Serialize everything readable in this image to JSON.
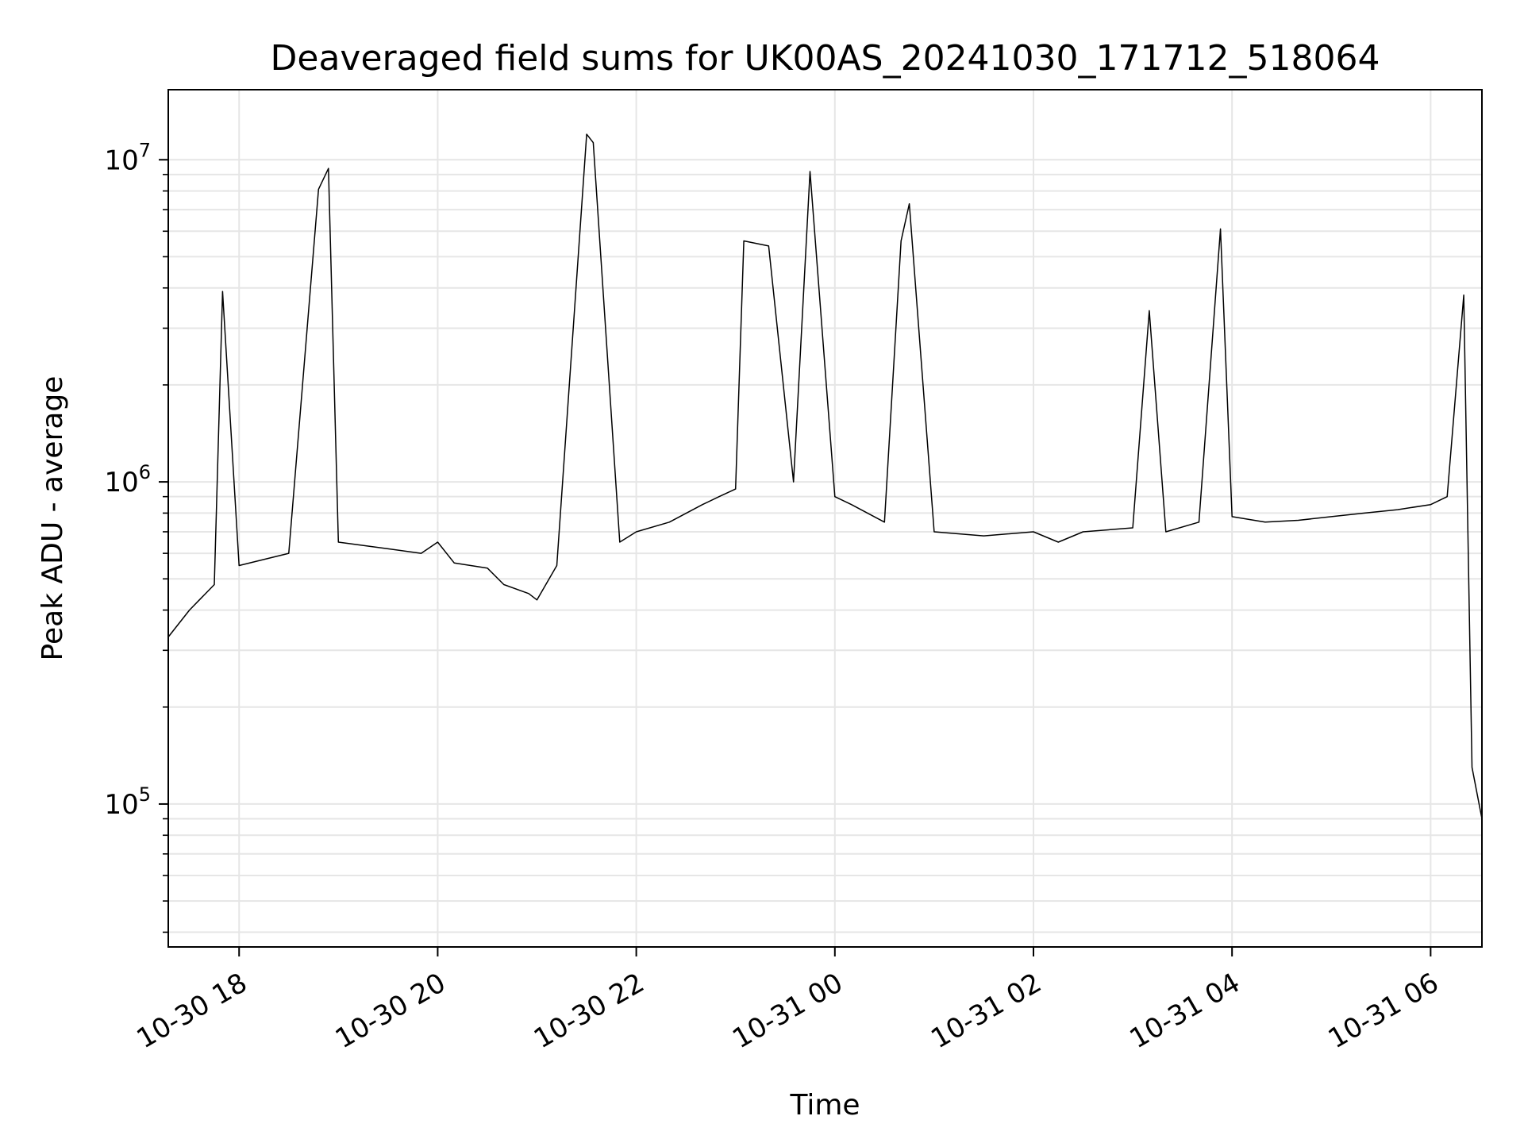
{
  "chart_data": {
    "type": "line",
    "title": "Deaveraged field sums for UK00AS_20241030_171712_518064",
    "xlabel": "Time",
    "ylabel": "Peak ADU - average",
    "yscale": "log",
    "ylim": [
      36000,
      16500000
    ],
    "xlim": [
      "2024-10-30T17:17:12",
      "2024-10-31T06:31:00"
    ],
    "x_ticks": [
      {
        "value": "2024-10-30T18:00:00",
        "label": "10-30 18"
      },
      {
        "value": "2024-10-30T20:00:00",
        "label": "10-30 20"
      },
      {
        "value": "2024-10-30T22:00:00",
        "label": "10-30 22"
      },
      {
        "value": "2024-10-31T00:00:00",
        "label": "10-31 00"
      },
      {
        "value": "2024-10-31T02:00:00",
        "label": "10-31 02"
      },
      {
        "value": "2024-10-31T04:00:00",
        "label": "10-31 04"
      },
      {
        "value": "2024-10-31T06:00:00",
        "label": "10-31 06"
      }
    ],
    "y_ticks": [
      {
        "value": 100000,
        "base": "10",
        "exp": "5"
      },
      {
        "value": 1000000,
        "base": "10",
        "exp": "6"
      },
      {
        "value": 10000000,
        "base": "10",
        "exp": "7"
      }
    ],
    "grid": true,
    "line_color": "#000000",
    "grid_color": "#e6e6e6",
    "series": [
      {
        "x": [
          "2024-10-30T17:17:12",
          "2024-10-30T17:30:00",
          "2024-10-30T17:45:00",
          "2024-10-30T17:50:00",
          "2024-10-30T18:00:00",
          "2024-10-30T18:30:00",
          "2024-10-30T18:48:00",
          "2024-10-30T18:54:00",
          "2024-10-30T19:00:00",
          "2024-10-30T19:30:00",
          "2024-10-30T19:50:00",
          "2024-10-30T20:00:00",
          "2024-10-30T20:10:00",
          "2024-10-30T20:30:00",
          "2024-10-30T20:40:00",
          "2024-10-30T20:55:00",
          "2024-10-30T21:00:00",
          "2024-10-30T21:12:00",
          "2024-10-30T21:30:00",
          "2024-10-30T21:34:00",
          "2024-10-30T21:50:00",
          "2024-10-30T22:00:00",
          "2024-10-30T22:20:00",
          "2024-10-30T22:40:00",
          "2024-10-30T22:50:00",
          "2024-10-30T23:00:00",
          "2024-10-30T23:05:00",
          "2024-10-30T23:20:00",
          "2024-10-30T23:35:00",
          "2024-10-30T23:45:00",
          "2024-10-31T00:00:00",
          "2024-10-31T00:10:00",
          "2024-10-31T00:30:00",
          "2024-10-31T00:40:00",
          "2024-10-31T00:45:00",
          "2024-10-31T01:00:00",
          "2024-10-31T01:30:00",
          "2024-10-31T02:00:00",
          "2024-10-31T02:15:00",
          "2024-10-31T02:30:00",
          "2024-10-31T03:00:00",
          "2024-10-31T03:10:00",
          "2024-10-31T03:20:00",
          "2024-10-31T03:40:00",
          "2024-10-31T03:53:00",
          "2024-10-31T04:00:00",
          "2024-10-31T04:20:00",
          "2024-10-31T04:40:00",
          "2024-10-31T05:00:00",
          "2024-10-31T05:20:00",
          "2024-10-31T05:40:00",
          "2024-10-31T06:00:00",
          "2024-10-31T06:10:00",
          "2024-10-31T06:20:00",
          "2024-10-31T06:25:00",
          "2024-10-31T06:31:00"
        ],
        "y": [
          330000,
          400000,
          480000,
          3900000,
          550000,
          600000,
          8100000,
          9400000,
          650000,
          620000,
          600000,
          650000,
          560000,
          540000,
          480000,
          450000,
          430000,
          550000,
          12000000,
          11300000,
          650000,
          700000,
          750000,
          850000,
          900000,
          950000,
          5600000,
          5400000,
          1000000,
          9200000,
          900000,
          850000,
          750000,
          5600000,
          7300000,
          700000,
          680000,
          700000,
          650000,
          700000,
          720000,
          3400000,
          700000,
          750000,
          6100000,
          780000,
          750000,
          760000,
          780000,
          800000,
          820000,
          850000,
          900000,
          3800000,
          130000,
          90000
        ]
      }
    ]
  }
}
